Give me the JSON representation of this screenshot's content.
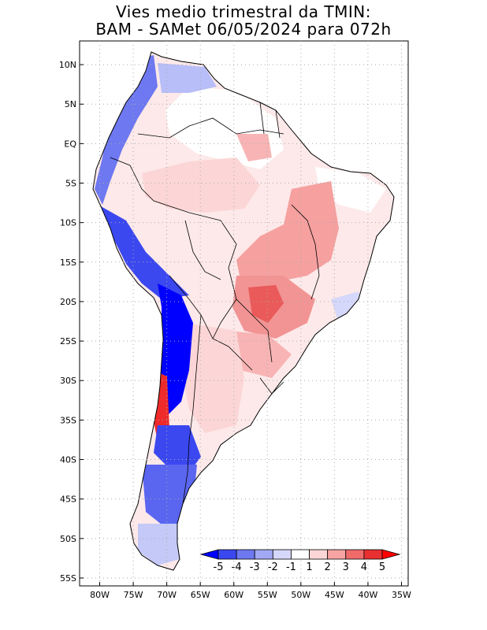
{
  "title": {
    "line1": "Vies medio trimestral da TMIN:",
    "line2": "BAM - SAMet 06/05/2024  para 072h"
  },
  "map": {
    "lat_ticks": [
      "10N",
      "5N",
      "EQ",
      "5S",
      "10S",
      "15S",
      "20S",
      "25S",
      "30S",
      "35S",
      "40S",
      "45S",
      "50S",
      "55S"
    ],
    "lon_ticks": [
      "80W",
      "75W",
      "70W",
      "65W",
      "60W",
      "55W",
      "50W",
      "45W",
      "40W",
      "35W"
    ],
    "extent": {
      "lon_min": -83,
      "lon_max": -34,
      "lat_min": -56,
      "lat_max": 13
    }
  },
  "colorbar": {
    "labels": [
      "-5",
      "-4",
      "-3",
      "-2",
      "-1",
      "1",
      "2",
      "3",
      "4",
      "5"
    ],
    "colors": [
      "#0000ff",
      "#3b48f0",
      "#6e78f0",
      "#a3a8f5",
      "#d5d8fa",
      "#ffffff",
      "#fcd6d6",
      "#f8a3a3",
      "#f06a6a",
      "#e83030",
      "#ff0000"
    ]
  },
  "colors": {
    "strong_cold": "#0000ff",
    "cold": "#5a6af0",
    "light_cold": "#c9cdf7",
    "light_warm": "#fcd6d6",
    "warm": "#f29a9a",
    "strong_warm": "#e82020",
    "border": "#000000",
    "grid": "#aaaaaa"
  }
}
